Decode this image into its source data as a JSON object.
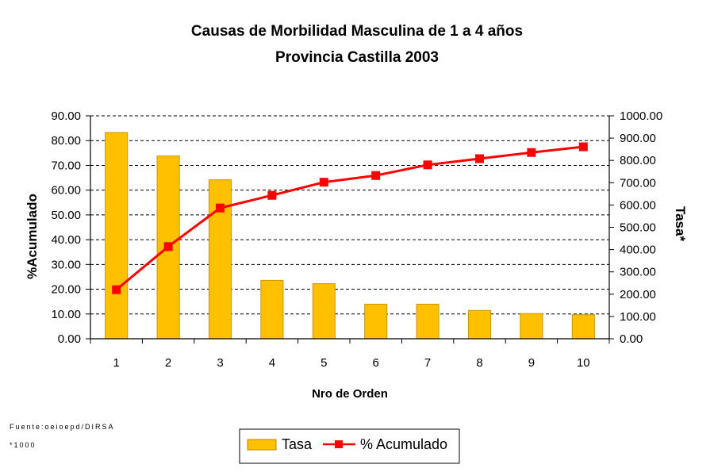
{
  "chart_data": {
    "type": "bar",
    "title": "Causas de Morbilidad Masculina de 1 a 4 años",
    "subtitle": "Provincia Castilla 2003",
    "xlabel": "Nro de Orden",
    "ylabel_left": "%Acumulado",
    "ylabel_right": "Tasa*",
    "categories": [
      "1",
      "2",
      "3",
      "4",
      "5",
      "6",
      "7",
      "8",
      "9",
      "10"
    ],
    "series": [
      {
        "name": "Tasa",
        "type": "bar",
        "axis": "right",
        "color": "#FFC000",
        "values": [
          925,
          820,
          713,
          262,
          247,
          155,
          155,
          127,
          113,
          108
        ]
      },
      {
        "name": "% Acumulado",
        "type": "line",
        "axis": "left",
        "color": "#FF0000",
        "values": [
          19.8,
          37.2,
          52.8,
          57.9,
          63.2,
          65.9,
          70.2,
          72.7,
          75.2,
          77.5
        ]
      }
    ],
    "ylim_left": [
      0,
      90
    ],
    "yticks_left": [
      "0.00",
      "10.00",
      "20.00",
      "30.00",
      "40.00",
      "50.00",
      "60.00",
      "70.00",
      "80.00",
      "90.00"
    ],
    "ylim_right": [
      0,
      1000
    ],
    "yticks_right": [
      "0.00",
      "100.00",
      "200.00",
      "300.00",
      "400.00",
      "500.00",
      "600.00",
      "700.00",
      "800.00",
      "900.00",
      "1000.00"
    ],
    "grid": "horizontal-dashed",
    "legend_position": "bottom"
  },
  "footnotes": {
    "source": "Fuente:oeioepd/DIRSA",
    "rate_note": "*1000"
  },
  "legend": {
    "bar_label": "Tasa",
    "line_label": "% Acumulado"
  }
}
